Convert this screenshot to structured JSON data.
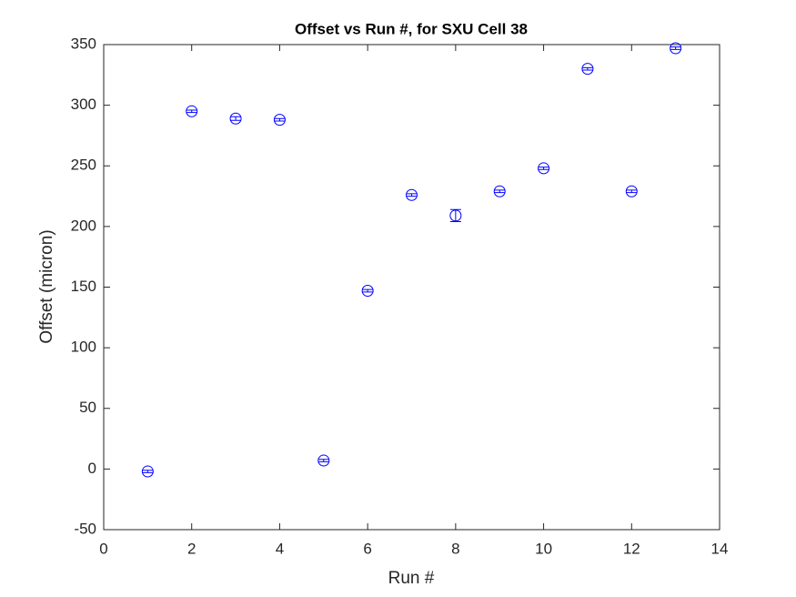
{
  "chart_data": {
    "type": "scatter",
    "title": "Offset vs Run #, for SXU Cell 38",
    "xlabel": "Run #",
    "ylabel": "Offset (micron)",
    "x": [
      1,
      2,
      3,
      4,
      5,
      6,
      7,
      8,
      9,
      10,
      11,
      12,
      13
    ],
    "values": [
      -2,
      295,
      289,
      288,
      7,
      147,
      226,
      209,
      229,
      248,
      330,
      229,
      347
    ],
    "errors": [
      1,
      1,
      1.5,
      1,
      1,
      1,
      1,
      5,
      1,
      1,
      1,
      1,
      1
    ],
    "color": "#0000ff",
    "xlim": [
      0,
      14
    ],
    "xticks": [
      0,
      2,
      4,
      6,
      8,
      10,
      12,
      14
    ],
    "ylim": [
      -50,
      350
    ],
    "yticks": [
      -50,
      0,
      50,
      100,
      150,
      200,
      250,
      300,
      350
    ],
    "grid": false
  }
}
